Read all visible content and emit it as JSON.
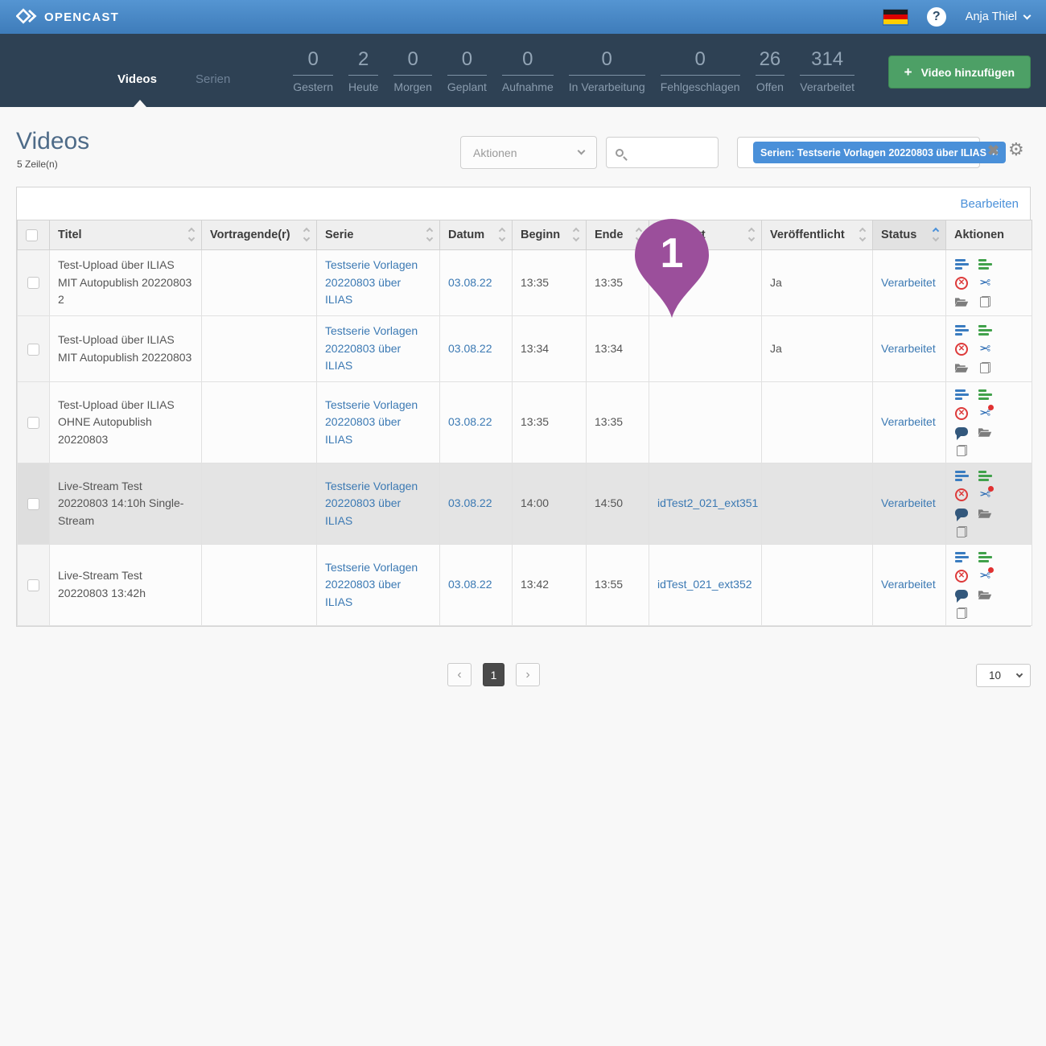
{
  "header": {
    "brand": "OPENCAST",
    "user": "Anja Thiel"
  },
  "nav": {
    "tabs": [
      {
        "label": "Videos",
        "active": true
      },
      {
        "label": "Serien",
        "active": false
      }
    ],
    "stats": [
      {
        "value": "0",
        "label": "Gestern"
      },
      {
        "value": "2",
        "label": "Heute"
      },
      {
        "value": "0",
        "label": "Morgen"
      },
      {
        "value": "0",
        "label": "Geplant"
      },
      {
        "value": "0",
        "label": "Aufnahme"
      },
      {
        "value": "0",
        "label": "In Verarbeitung"
      },
      {
        "value": "0",
        "label": "Fehlgeschlagen"
      },
      {
        "value": "26",
        "label": "Offen"
      },
      {
        "value": "314",
        "label": "Verarbeitet"
      }
    ],
    "add_button": {
      "plus": "+",
      "label": "Video hinzufügen"
    }
  },
  "page": {
    "title": "Videos",
    "row_count": "5 Zeile(n)"
  },
  "toolbar": {
    "actions_label": "Aktionen",
    "search_placeholder": "",
    "filter_chip": "Serien: Testserie Vorlagen 20220803 über ILIAS",
    "chip_close": "×",
    "marker_label": "1"
  },
  "icons": {
    "clear-filters": "✖",
    "gear": "⚙",
    "cut": "✂",
    "delete": "✕",
    "help": "?",
    "prev": "‹",
    "next": "›"
  },
  "table": {
    "edit_label": "Bearbeiten",
    "columns": [
      {
        "label": "",
        "type": "checkbox",
        "sortable": false
      },
      {
        "label": "Titel",
        "sortable": true
      },
      {
        "label": "Vortragende(r)",
        "sortable": true
      },
      {
        "label": "Serie",
        "sortable": true
      },
      {
        "label": "Datum",
        "sortable": true
      },
      {
        "label": "Beginn",
        "sortable": true
      },
      {
        "label": "Ende",
        "sortable": true
      },
      {
        "label": "Standort",
        "sortable": true
      },
      {
        "label": "Veröffentlicht",
        "sortable": true
      },
      {
        "label": "Status",
        "sortable": true,
        "sorted": true
      },
      {
        "label": "Aktionen",
        "sortable": false
      }
    ],
    "rows": [
      {
        "title": "Test-Upload über ILIAS MIT Autopublish 20220803 2",
        "presenter": "",
        "series": "Testserie Vorlagen 20220803 über ILIAS",
        "date": "03.08.22",
        "start": "13:35",
        "end": "13:35",
        "location": "",
        "published": "Ja",
        "status": "Verarbeitet",
        "highlight": false,
        "actions": [
          "event-details",
          "series-details",
          "delete",
          "cut",
          "assets",
          "duplicate"
        ]
      },
      {
        "title": "Test-Upload über ILIAS MIT Autopublish 20220803",
        "presenter": "",
        "series": "Testserie Vorlagen 20220803 über ILIAS",
        "date": "03.08.22",
        "start": "13:34",
        "end": "13:34",
        "location": "",
        "published": "Ja",
        "status": "Verarbeitet",
        "highlight": false,
        "actions": [
          "event-details",
          "series-details",
          "delete",
          "cut",
          "assets",
          "duplicate"
        ]
      },
      {
        "title": "Test-Upload über ILIAS OHNE Autopublish 20220803",
        "presenter": "",
        "series": "Testserie Vorlagen 20220803 über ILIAS",
        "date": "03.08.22",
        "start": "13:35",
        "end": "13:35",
        "location": "",
        "published": "",
        "status": "Verarbeitet",
        "highlight": false,
        "actions": [
          "event-details",
          "series-details",
          "delete",
          "cut-badge",
          "comments",
          "assets",
          "duplicate"
        ]
      },
      {
        "title": "Live-Stream Test 20220803 14:10h Single-Stream",
        "presenter": "",
        "series": "Testserie Vorlagen 20220803 über ILIAS",
        "date": "03.08.22",
        "start": "14:00",
        "end": "14:50",
        "location": "idTest2_021_ext351",
        "published": "",
        "status": "Verarbeitet",
        "highlight": true,
        "actions": [
          "event-details",
          "series-details",
          "delete",
          "cut-badge",
          "comments",
          "assets",
          "duplicate"
        ]
      },
      {
        "title": "Live-Stream Test 20220803 13:42h",
        "presenter": "",
        "series": "Testserie Vorlagen 20220803 über ILIAS",
        "date": "03.08.22",
        "start": "13:42",
        "end": "13:55",
        "location": "idTest_021_ext352",
        "published": "",
        "status": "Verarbeitet",
        "highlight": false,
        "actions": [
          "event-details",
          "series-details",
          "delete",
          "cut-badge",
          "comments",
          "assets",
          "duplicate"
        ]
      }
    ]
  },
  "pagination": {
    "current": "1",
    "page_size": "10"
  },
  "colors": {
    "topbar_blue": "#4a8bc7",
    "navbar_dark": "#2e4154",
    "accent_blue": "#4a90d9",
    "link_blue": "#3b79b3",
    "button_green": "#4da066",
    "marker_purple": "#9b4f9b",
    "delete_red": "#dd3a3a",
    "series_green": "#41a14b",
    "comment_navy": "#33587c",
    "highlight_row": "#e4e4e4"
  }
}
